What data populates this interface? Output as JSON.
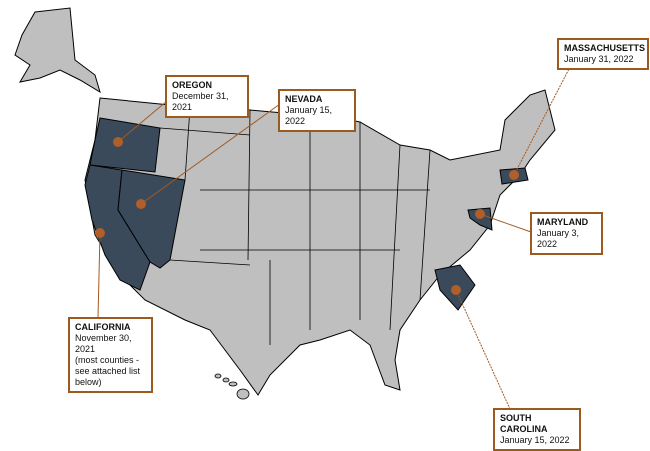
{
  "colors": {
    "state": "#bfbfbf",
    "highlight": "#3a4a5b",
    "accent": "#a35a22",
    "dot": "#b05e2a"
  },
  "callouts": [
    {
      "id": "oregon",
      "state": "OREGON",
      "date": "December 31, 2021"
    },
    {
      "id": "nevada",
      "state": "NEVADA",
      "date": "January 15, 2022"
    },
    {
      "id": "massachusetts",
      "state": "MASSACHUSETTS",
      "date": "January 31, 2022"
    },
    {
      "id": "maryland",
      "state": "MARYLAND",
      "date": "January 3, 2022"
    },
    {
      "id": "california",
      "state": "CALIFORNIA",
      "date": "November 30, 2021",
      "note": "(most counties - see attached list below)"
    },
    {
      "id": "south-carolina",
      "state": "SOUTH CAROLINA",
      "date": "January 15, 2022"
    }
  ]
}
